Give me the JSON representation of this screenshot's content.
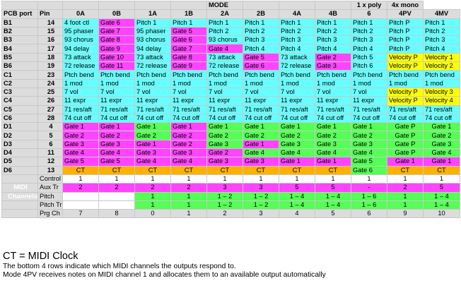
{
  "header": {
    "mode_title": "MODE",
    "poly_title": "1 x  poly",
    "mono_title": "4x mono",
    "pcb_port": "PCB port",
    "pin": "Pin",
    "modes": [
      "0A",
      "0B",
      "1A",
      "1B",
      "2A",
      "2B",
      "4A",
      "4B",
      "6",
      "4PV",
      "4MV"
    ]
  },
  "rows": [
    {
      "port": "B1",
      "pin": "14",
      "cells": [
        [
          "4 foot ctl",
          "cy"
        ],
        [
          "Gate 6",
          "mg"
        ],
        [
          "Pitch 1",
          "cy"
        ],
        [
          "Pitch 1",
          "cy"
        ],
        [
          "Pitch 1",
          "cy"
        ],
        [
          "Pitch 1",
          "cy"
        ],
        [
          "Pitch 1",
          "cy"
        ],
        [
          "Pitch 1",
          "cy"
        ],
        [
          "Pitch 1",
          "cy"
        ],
        [
          "Pitch P",
          "cy"
        ],
        [
          "Pitch 1",
          "cy"
        ]
      ]
    },
    {
      "port": "B2",
      "pin": "15",
      "cells": [
        [
          "95 phaser",
          "cy"
        ],
        [
          "Gate 7",
          "mg"
        ],
        [
          "95 phaser",
          "cy"
        ],
        [
          "Gate 5",
          "mg"
        ],
        [
          "Pitch 2",
          "cy"
        ],
        [
          "Pitch 2",
          "cy"
        ],
        [
          "Pitch 2",
          "cy"
        ],
        [
          "Pitch 2",
          "cy"
        ],
        [
          "Pitch 2",
          "cy"
        ],
        [
          "Pitch P",
          "cy"
        ],
        [
          "Pitch 2",
          "cy"
        ]
      ]
    },
    {
      "port": "B3",
      "pin": "16",
      "cells": [
        [
          "93 chorus",
          "cy"
        ],
        [
          "Gate 8",
          "mg"
        ],
        [
          "93 chorus",
          "cy"
        ],
        [
          "Gate 6",
          "mg"
        ],
        [
          "93 chorus",
          "cy"
        ],
        [
          "Pitch 3",
          "cy"
        ],
        [
          "Pitch 3",
          "cy"
        ],
        [
          "Pitch 3",
          "cy"
        ],
        [
          "Pitch 3",
          "cy"
        ],
        [
          "Pitch P",
          "cy"
        ],
        [
          "Pitch 3",
          "cy"
        ]
      ]
    },
    {
      "port": "B4",
      "pin": "17",
      "cells": [
        [
          "94 delay",
          "cy"
        ],
        [
          "Gate 9",
          "mg"
        ],
        [
          "94 delay",
          "cy"
        ],
        [
          "Gate 7",
          "mg"
        ],
        [
          "Gate 4",
          "mg"
        ],
        [
          "Pitch 4",
          "cy"
        ],
        [
          "Pitch 4",
          "cy"
        ],
        [
          "Pitch 4",
          "cy"
        ],
        [
          "Pitch 4",
          "cy"
        ],
        [
          "Pitch P",
          "cy"
        ],
        [
          "Pitch 4",
          "cy"
        ]
      ]
    },
    {
      "port": "B5",
      "pin": "18",
      "cells": [
        [
          "73 attack",
          "cy"
        ],
        [
          "Gate 10",
          "mg"
        ],
        [
          "73 attack",
          "cy"
        ],
        [
          "Gate 8",
          "mg"
        ],
        [
          "73 attack",
          "cy"
        ],
        [
          "Gate 5",
          "mg"
        ],
        [
          "73 attack",
          "cy"
        ],
        [
          "Gate 2",
          "mg"
        ],
        [
          "Pitch 5",
          "cy"
        ],
        [
          "Velocity P",
          "ye"
        ],
        [
          "Velocity 1",
          "ye"
        ]
      ]
    },
    {
      "port": "B6",
      "pin": "19",
      "cells": [
        [
          "72 release",
          "cy"
        ],
        [
          "Gate 11",
          "mg"
        ],
        [
          "72 release",
          "cy"
        ],
        [
          "Gate 9",
          "mg"
        ],
        [
          "72 release",
          "cy"
        ],
        [
          "Gate 6",
          "mg"
        ],
        [
          "72 release",
          "cy"
        ],
        [
          "Gate 3",
          "mg"
        ],
        [
          "Pitch 6",
          "cy"
        ],
        [
          "Velocity P",
          "ye"
        ],
        [
          "Velocity 2",
          "ye"
        ]
      ]
    },
    {
      "port": "C1",
      "pin": "23",
      "cells": [
        [
          "Ptch bend",
          "cy"
        ],
        [
          "Ptch bend",
          "cy"
        ],
        [
          "Ptch bend",
          "cy"
        ],
        [
          "Ptch bend",
          "cy"
        ],
        [
          "Ptch bend",
          "cy"
        ],
        [
          "Ptch bend",
          "cy"
        ],
        [
          "Ptch bend",
          "cy"
        ],
        [
          "Ptch bend",
          "cy"
        ],
        [
          "Ptch bend",
          "cy"
        ],
        [
          "Ptch bend",
          "cy"
        ],
        [
          "Ptch bend",
          "cy"
        ]
      ]
    },
    {
      "port": "C2",
      "pin": "24",
      "cells": [
        [
          "1 mod",
          "cy"
        ],
        [
          "1 mod",
          "cy"
        ],
        [
          "1 mod",
          "cy"
        ],
        [
          "1 mod",
          "cy"
        ],
        [
          "1 mod",
          "cy"
        ],
        [
          "1 mod",
          "cy"
        ],
        [
          "1 mod",
          "cy"
        ],
        [
          "1 mod",
          "cy"
        ],
        [
          "1 mod",
          "cy"
        ],
        [
          "1 mod",
          "cy"
        ],
        [
          "1 mod",
          "cy"
        ]
      ]
    },
    {
      "port": "C3",
      "pin": "25",
      "cells": [
        [
          "7 vol",
          "cy"
        ],
        [
          "7 vol",
          "cy"
        ],
        [
          "7 vol",
          "cy"
        ],
        [
          "7 vol",
          "cy"
        ],
        [
          "7 vol",
          "cy"
        ],
        [
          "7 vol",
          "cy"
        ],
        [
          "7 vol",
          "cy"
        ],
        [
          "7 vol",
          "cy"
        ],
        [
          "7 vol",
          "cy"
        ],
        [
          "Velocity P",
          "ye"
        ],
        [
          "Velocity 3",
          "ye"
        ]
      ]
    },
    {
      "port": "C4",
      "pin": "26",
      "cells": [
        [
          "11 expr",
          "cy"
        ],
        [
          "11 expr",
          "cy"
        ],
        [
          "11 expr",
          "cy"
        ],
        [
          "11 expr",
          "cy"
        ],
        [
          "11 expr",
          "cy"
        ],
        [
          "11 expr",
          "cy"
        ],
        [
          "11 expr",
          "cy"
        ],
        [
          "11 expr",
          "cy"
        ],
        [
          "11 expr",
          "cy"
        ],
        [
          "Velocity P",
          "ye"
        ],
        [
          "Velocity 4",
          "ye"
        ]
      ]
    },
    {
      "port": "C5",
      "pin": "27",
      "cells": [
        [
          "71 res/aft",
          "cy"
        ],
        [
          "71 res/aft",
          "cy"
        ],
        [
          "71 res/aft",
          "cy"
        ],
        [
          "71 res/aft",
          "cy"
        ],
        [
          "71 res/aft",
          "cy"
        ],
        [
          "71 res/aft",
          "cy"
        ],
        [
          "71 res/aft",
          "cy"
        ],
        [
          "71 res/aft",
          "cy"
        ],
        [
          "71 res/aft",
          "cy"
        ],
        [
          "71 res/aft",
          "cy"
        ],
        [
          "71 res/aft",
          "cy"
        ]
      ]
    },
    {
      "port": "C6",
      "pin": "28",
      "cells": [
        [
          "74 cut off",
          "cy"
        ],
        [
          "74 cut off",
          "cy"
        ],
        [
          "74 cut off",
          "cy"
        ],
        [
          "74 cut off",
          "cy"
        ],
        [
          "74 cut off",
          "cy"
        ],
        [
          "74 cut off",
          "cy"
        ],
        [
          "74 cut off",
          "cy"
        ],
        [
          "74 cut off",
          "cy"
        ],
        [
          "74 cut off",
          "cy"
        ],
        [
          "74 cut off",
          "cy"
        ],
        [
          "74 cut off",
          "cy"
        ]
      ]
    },
    {
      "port": "D1",
      "pin": "4",
      "cells": [
        [
          "Gate 1",
          "mg"
        ],
        [
          "Gate 1",
          "mg"
        ],
        [
          "Gate 1",
          "gr"
        ],
        [
          "Gate 1",
          "mg"
        ],
        [
          "Gate 1",
          "gr"
        ],
        [
          "Gate 1",
          "gr"
        ],
        [
          "Gate 1",
          "gr"
        ],
        [
          "Gate 1",
          "gr"
        ],
        [
          "Gate 1",
          "gr"
        ],
        [
          "Gate P",
          "gr"
        ],
        [
          "Gate 1",
          "gr"
        ]
      ]
    },
    {
      "port": "D2",
      "pin": "5",
      "cells": [
        [
          "Gate 2",
          "mg"
        ],
        [
          "Gate 2",
          "mg"
        ],
        [
          "Gate 2",
          "gr"
        ],
        [
          "Gate 2",
          "mg"
        ],
        [
          "Gate 2",
          "gr"
        ],
        [
          "Gate 2",
          "gr"
        ],
        [
          "Gate 2",
          "gr"
        ],
        [
          "Gate 2",
          "gr"
        ],
        [
          "Gate 2",
          "gr"
        ],
        [
          "Gate P",
          "gr"
        ],
        [
          "Gate 2",
          "gr"
        ]
      ]
    },
    {
      "port": "D3",
      "pin": "6",
      "cells": [
        [
          "Gate 3",
          "mg"
        ],
        [
          "Gate 3",
          "mg"
        ],
        [
          "Gate 1",
          "mg"
        ],
        [
          "Gate 2",
          "mg"
        ],
        [
          "Gate 3",
          "gr"
        ],
        [
          "Gate 1",
          "mg"
        ],
        [
          "Gate 3",
          "gr"
        ],
        [
          "Gate 3",
          "gr"
        ],
        [
          "Gate 3",
          "gr"
        ],
        [
          "Gate P",
          "gr"
        ],
        [
          "Gate 3",
          "gr"
        ]
      ]
    },
    {
      "port": "D4",
      "pin": "11",
      "cells": [
        [
          "Gate 4",
          "mg"
        ],
        [
          "Gate 4",
          "mg"
        ],
        [
          "Gate 3",
          "mg"
        ],
        [
          "Gate 3",
          "mg"
        ],
        [
          "Gate 2",
          "mg"
        ],
        [
          "Gate 4",
          "gr"
        ],
        [
          "Gate 4",
          "gr"
        ],
        [
          "Gate 4",
          "gr"
        ],
        [
          "Gate 4",
          "gr"
        ],
        [
          "Gate P",
          "gr"
        ],
        [
          "Gate 4",
          "gr"
        ]
      ]
    },
    {
      "port": "D5",
      "pin": "12",
      "cells": [
        [
          "Gate 5",
          "mg"
        ],
        [
          "Gate 5",
          "mg"
        ],
        [
          "Gate 4",
          "mg"
        ],
        [
          "Gate 4",
          "mg"
        ],
        [
          "Gate 3",
          "mg"
        ],
        [
          "Gate 3",
          "mg"
        ],
        [
          "Gate 1",
          "mg"
        ],
        [
          "Gate 1",
          "mg"
        ],
        [
          "Gate 5",
          "gr"
        ],
        [
          "Gate 1",
          "mg"
        ],
        [
          "Gate 1",
          "mg"
        ]
      ]
    },
    {
      "port": "D6",
      "pin": "13",
      "cells": [
        [
          "CT",
          "or"
        ],
        [
          "CT",
          "or"
        ],
        [
          "CT",
          "or"
        ],
        [
          "CT",
          "or"
        ],
        [
          "CT",
          "or"
        ],
        [
          "CT",
          "or"
        ],
        [
          "CT",
          "or"
        ],
        [
          "CT",
          "or"
        ],
        [
          "Gate 6",
          "gr"
        ],
        [
          "CT",
          "or"
        ],
        [
          "CT",
          "or"
        ]
      ]
    }
  ],
  "midi_rows": [
    {
      "label": "Control",
      "cells": [
        [
          "1",
          "wh"
        ],
        [
          "1",
          "wh"
        ],
        [
          "1",
          "wh"
        ],
        [
          "1",
          "wh"
        ],
        [
          "1",
          "wh"
        ],
        [
          "1",
          "wh"
        ],
        [
          "1",
          "wh"
        ],
        [
          "1",
          "wh"
        ],
        [
          "1",
          "wh"
        ],
        [
          "1",
          "wh"
        ],
        [
          "1",
          "wh"
        ]
      ]
    },
    {
      "label": "Aux Tr",
      "cells": [
        [
          "2",
          "mg"
        ],
        [
          "2",
          "mg"
        ],
        [
          "2",
          "mg"
        ],
        [
          "2",
          "mg"
        ],
        [
          "3",
          "mg"
        ],
        [
          "3",
          "mg"
        ],
        [
          "5",
          "mg"
        ],
        [
          "5",
          "mg"
        ],
        [
          "-",
          "mg"
        ],
        [
          "2",
          "mg"
        ],
        [
          "5",
          "mg"
        ]
      ]
    },
    {
      "label": "Pitch",
      "cells": [
        [
          "",
          "wh"
        ],
        [
          "",
          "wh"
        ],
        [
          "1",
          "gr"
        ],
        [
          "1",
          "gr"
        ],
        [
          "1 – 2",
          "gr"
        ],
        [
          "1 – 2",
          "gr"
        ],
        [
          "1 – 4",
          "gr"
        ],
        [
          "1 – 4",
          "gr"
        ],
        [
          "1 – 6",
          "gr"
        ],
        [
          "1",
          "gr"
        ],
        [
          "1 – 4",
          "gr"
        ]
      ]
    },
    {
      "label": "Pitch Tr",
      "cells": [
        [
          "",
          "wh"
        ],
        [
          "",
          "wh"
        ],
        [
          "1",
          "gr"
        ],
        [
          "1",
          "gr"
        ],
        [
          "1 – 2",
          "gr"
        ],
        [
          "1 – 2",
          "gr"
        ],
        [
          "1 – 4",
          "gr"
        ],
        [
          "1 – 4",
          "gr"
        ],
        [
          "1 – 6",
          "gr"
        ],
        [
          "1",
          "gr"
        ],
        [
          "1 – 4",
          "gr"
        ]
      ]
    },
    {
      "label": "Prg Ch",
      "cells": [
        [
          "7",
          "g"
        ],
        [
          "8",
          "g"
        ],
        [
          "0",
          "g"
        ],
        [
          "1",
          "g"
        ],
        [
          "2",
          "g"
        ],
        [
          "3",
          "g"
        ],
        [
          "4",
          "g"
        ],
        [
          "5",
          "g"
        ],
        [
          "6",
          "g"
        ],
        [
          "9",
          "g"
        ],
        [
          "10",
          "g"
        ]
      ]
    }
  ],
  "midi_labels": {
    "midi": "MIDI",
    "channels": "Channels"
  },
  "notes": {
    "line1": "CT = MIDI Clock",
    "line2": "The bottom 4 rows indicate which MIDI channels the outputs respond to.",
    "line3": "Mode 4PV receives notes on MIDI channel 1 and allocates them to an available output automatically"
  }
}
